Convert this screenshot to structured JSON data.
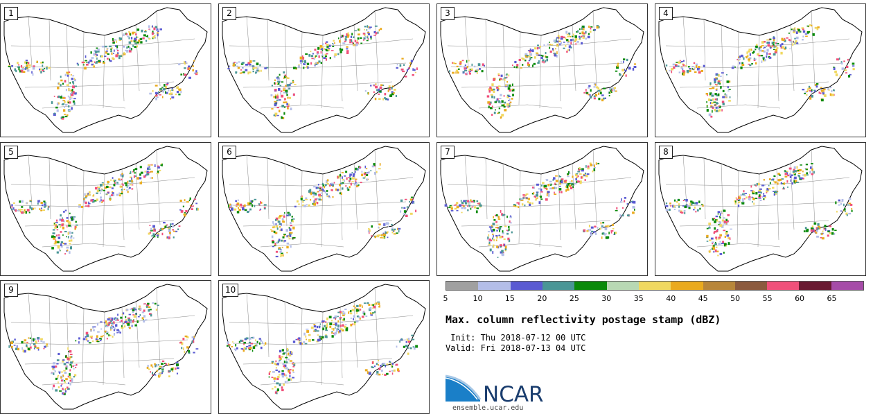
{
  "panels": [
    {
      "label": "1"
    },
    {
      "label": "2"
    },
    {
      "label": "3"
    },
    {
      "label": "4"
    },
    {
      "label": "5"
    },
    {
      "label": "6"
    },
    {
      "label": "7"
    },
    {
      "label": "8"
    },
    {
      "label": "9"
    },
    {
      "label": "10"
    }
  ],
  "colorbar": {
    "colors": [
      "#a0a0a0",
      "#b4bee8",
      "#5a5ad2",
      "#4a9696",
      "#0a8a0a",
      "#b8d8b4",
      "#f0d860",
      "#eaaa1e",
      "#b8863a",
      "#8c5a3e",
      "#f0507a",
      "#6a1a32",
      "#a64ca8"
    ],
    "labels": [
      "5",
      "10",
      "15",
      "20",
      "25",
      "30",
      "35",
      "40",
      "45",
      "50",
      "55",
      "60",
      "65"
    ]
  },
  "title": "Max. column reflectivity postage stamp (dBZ)",
  "init": " Init: Thu 2018-07-12 00 UTC",
  "valid": "Valid: Fri 2018-07-13 04 UTC",
  "logo": {
    "name": "NCAR",
    "url": "ensemble.ucar.edu"
  }
}
